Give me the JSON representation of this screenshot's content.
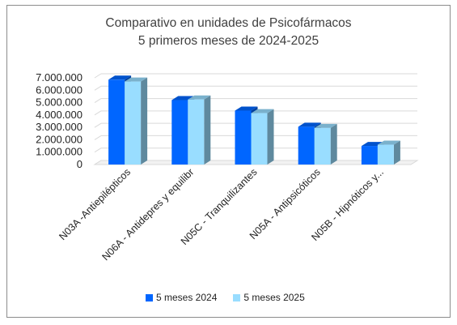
{
  "chart_data": {
    "type": "bar",
    "title": "Comparativo en unidades de Psicofármacos",
    "subtitle": "5 primeros meses de 2024-2025",
    "categories": [
      "N03A -Antiepilépticos",
      "N06A - Antidepres y equilibr",
      "N05C - Tranquilizantes",
      "N05A - Antipsicóticos",
      "N05B - Hipnóticos y..."
    ],
    "series": [
      {
        "name": "5 meses 2024",
        "color": "#0066ff",
        "values": [
          6850000,
          5200000,
          4350000,
          3050000,
          1500000
        ]
      },
      {
        "name": "5  meses 2025",
        "color": "#99ddff",
        "values": [
          6700000,
          5250000,
          4150000,
          2950000,
          1600000
        ]
      }
    ],
    "y_ticks": [
      "0",
      "1.000.000",
      "2.000.000",
      "3.000.000",
      "4.000.000",
      "5.000.000",
      "6.000.000",
      "7.000.000"
    ],
    "ylim": [
      0,
      7000000
    ],
    "grid": true,
    "legend_position": "bottom"
  }
}
